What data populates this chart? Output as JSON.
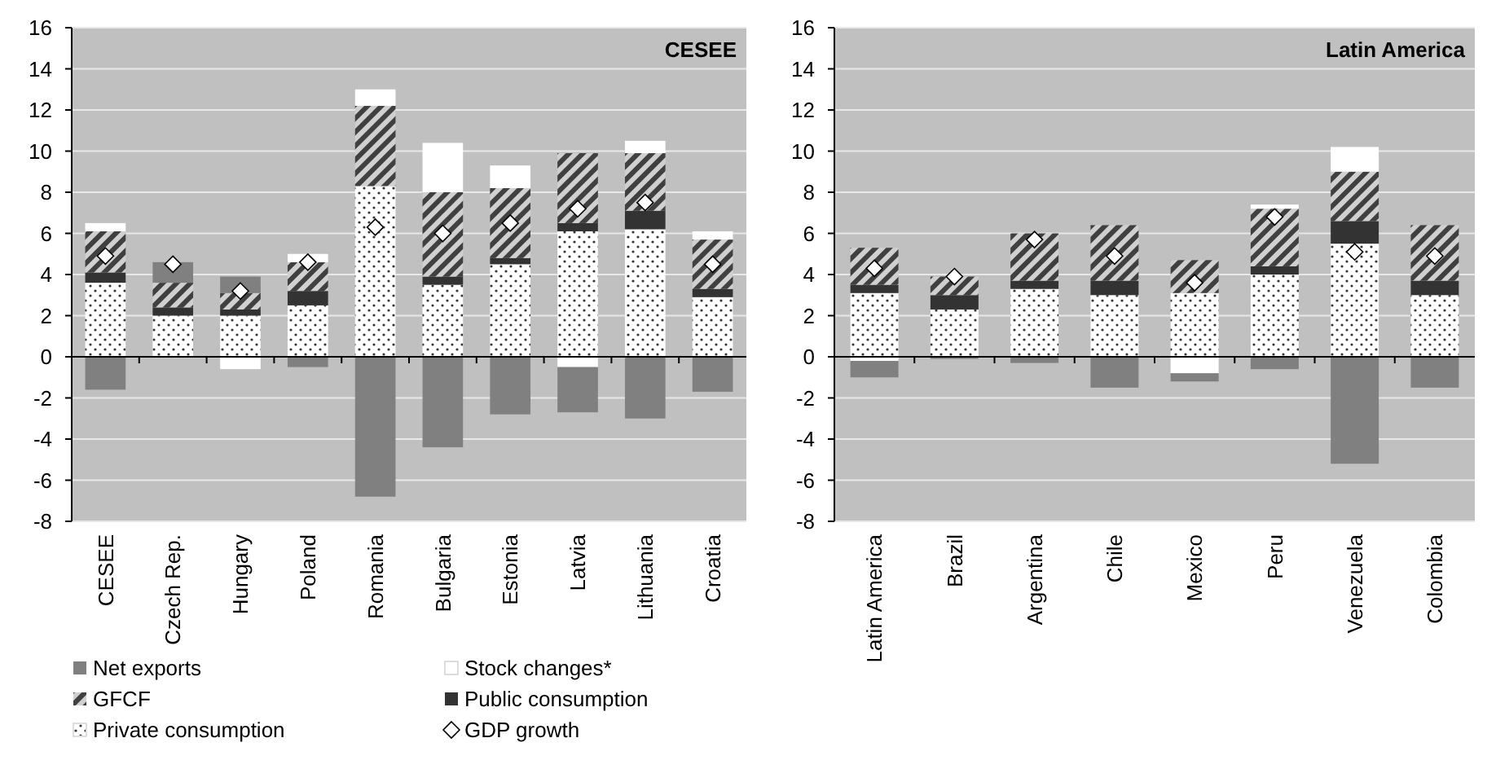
{
  "chart_data": [
    {
      "type": "bar",
      "title": "CESEE",
      "stacked": true,
      "legend": "bottom",
      "grid": "y",
      "ylim": [
        -8,
        16
      ],
      "yticks": [
        -8,
        -6,
        -4,
        -2,
        0,
        2,
        4,
        6,
        8,
        10,
        12,
        14,
        16
      ],
      "categories": [
        "CESEE",
        "Czech Rep.",
        "Hungary",
        "Poland",
        "Romania",
        "Bulgaria",
        "Estonia",
        "Latvia",
        "Lithuania",
        "Croatia"
      ],
      "series": [
        {
          "name": "Private consumption",
          "color": "#ffffff",
          "values": [
            3.6,
            2.0,
            2.0,
            2.5,
            8.3,
            3.5,
            4.5,
            6.1,
            6.2,
            2.9
          ]
        },
        {
          "name": "Public consumption",
          "color": "#333333",
          "values": [
            0.5,
            0.4,
            0.3,
            0.7,
            0,
            0.4,
            0.3,
            0.4,
            0.9,
            0.4
          ]
        },
        {
          "name": "GFCF",
          "color": "#404040",
          "values": [
            2.0,
            1.2,
            0.8,
            1.4,
            3.9,
            4.1,
            3.4,
            3.4,
            2.8,
            2.4
          ]
        },
        {
          "name": "Stock changes*",
          "color": "#ffffff",
          "values": [
            0.4,
            0,
            -0.6,
            0.4,
            0.8,
            2.4,
            1.1,
            -0.5,
            0.6,
            0.4
          ]
        },
        {
          "name": "Net exports",
          "color": "#808080",
          "values": [
            -1.6,
            1.0,
            0.8,
            -0.5,
            -6.8,
            -4.4,
            -2.8,
            -2.2,
            -3.0,
            -1.7
          ]
        },
        {
          "name": "GDP growth",
          "type": "scatter",
          "marker": "diamond",
          "color": "#ffffff",
          "values": [
            4.9,
            4.5,
            3.2,
            4.6,
            6.3,
            6.0,
            6.5,
            7.2,
            7.5,
            4.5
          ]
        }
      ]
    },
    {
      "type": "bar",
      "title": "Latin America",
      "stacked": true,
      "grid": "y",
      "ylim": [
        -8,
        16
      ],
      "yticks": [
        -8,
        -6,
        -4,
        -2,
        0,
        2,
        4,
        6,
        8,
        10,
        12,
        14,
        16
      ],
      "categories": [
        "Latin America",
        "Brazil",
        "Argentina",
        "Chile",
        "Mexico",
        "Peru",
        "Venezuela",
        "Colombia"
      ],
      "series": [
        {
          "color": "#ffffff",
          "values": [
            3.1,
            2.3,
            3.3,
            3.0,
            3.1,
            4.0,
            5.5,
            3.0
          ]
        },
        {
          "color": "#333333",
          "values": [
            0.4,
            0.7,
            0.4,
            0.7,
            0,
            0.4,
            1.1,
            0.7
          ]
        },
        {
          "color": "#404040",
          "values": [
            1.8,
            0.9,
            2.3,
            2.7,
            1.6,
            2.8,
            2.4,
            2.7
          ]
        },
        {
          "color": "#ffffff",
          "values": [
            -0.2,
            0,
            0,
            0,
            -0.8,
            0.2,
            1.2,
            0
          ]
        },
        {
          "color": "#808080",
          "values": [
            -0.8,
            -0.1,
            -0.3,
            -1.5,
            -0.4,
            -0.6,
            -5.2,
            -1.5
          ]
        },
        {
          "type": "scatter",
          "marker": "diamond",
          "color": "#ffffff",
          "values": [
            4.3,
            3.9,
            5.7,
            4.9,
            3.6,
            6.8,
            5.1,
            4.9
          ]
        }
      ]
    }
  ]
}
